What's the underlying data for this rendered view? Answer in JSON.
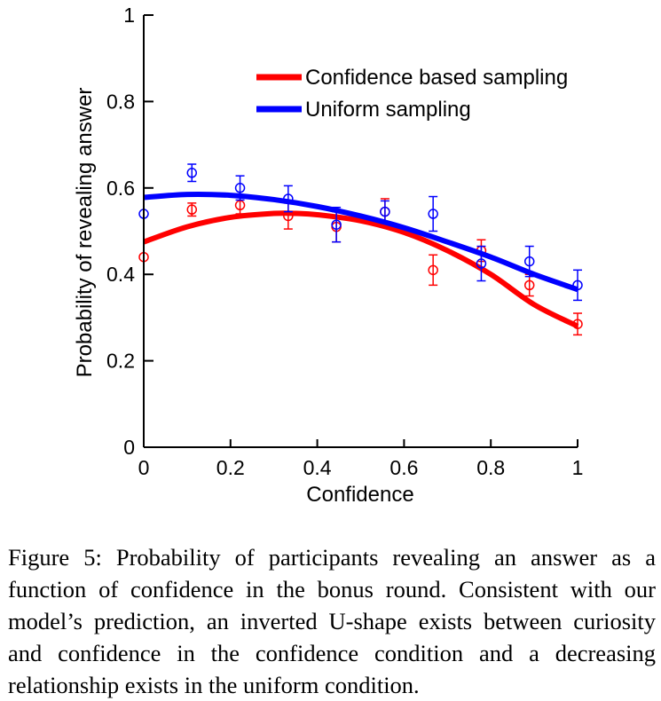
{
  "chart_data": {
    "type": "line",
    "xlabel": "Confidence",
    "ylabel": "Probability of revealing answer",
    "xlim": [
      0,
      1
    ],
    "ylim": [
      0,
      1
    ],
    "xticks": [
      0,
      0.2,
      0.4,
      0.6,
      0.8,
      1
    ],
    "xtick_labels": [
      "0",
      "0.2",
      "0.4",
      "0.6",
      "0.8",
      "1"
    ],
    "yticks": [
      0,
      0.2,
      0.4,
      0.6,
      0.8,
      1
    ],
    "ytick_labels": [
      "0",
      "0.2",
      "0.4",
      "0.6",
      "0.8",
      "1"
    ],
    "grid": false,
    "legend_position": "top-right",
    "series": [
      {
        "name": "Confidence based sampling",
        "color": "#ff0000",
        "fit_x": [
          0,
          0.1,
          0.2,
          0.3,
          0.35,
          0.4,
          0.5,
          0.6,
          0.7,
          0.8,
          0.9,
          1
        ],
        "fit_y": [
          0.475,
          0.51,
          0.532,
          0.541,
          0.541,
          0.538,
          0.524,
          0.497,
          0.455,
          0.4,
          0.33,
          0.28
        ],
        "points": [
          {
            "x": 0,
            "y": 0.44,
            "err": 0.0
          },
          {
            "x": 0.111,
            "y": 0.55,
            "err": 0.015
          },
          {
            "x": 0.222,
            "y": 0.56,
            "err": 0.02
          },
          {
            "x": 0.333,
            "y": 0.535,
            "err": 0.03
          },
          {
            "x": 0.444,
            "y": 0.51,
            "err": 0.035
          },
          {
            "x": 0.556,
            "y": 0.545,
            "err": 0.03
          },
          {
            "x": 0.667,
            "y": 0.41,
            "err": 0.035
          },
          {
            "x": 0.778,
            "y": 0.455,
            "err": 0.025
          },
          {
            "x": 0.889,
            "y": 0.375,
            "err": 0.025
          },
          {
            "x": 1,
            "y": 0.285,
            "err": 0.025
          }
        ]
      },
      {
        "name": "Uniform sampling",
        "color": "#0000ff",
        "fit_x": [
          0,
          0.1,
          0.2,
          0.3,
          0.4,
          0.5,
          0.6,
          0.7,
          0.8,
          0.9,
          1
        ],
        "fit_y": [
          0.578,
          0.585,
          0.583,
          0.573,
          0.557,
          0.535,
          0.508,
          0.475,
          0.44,
          0.4,
          0.365
        ],
        "points": [
          {
            "x": 0,
            "y": 0.54,
            "err": 0.0
          },
          {
            "x": 0.111,
            "y": 0.635,
            "err": 0.02
          },
          {
            "x": 0.222,
            "y": 0.6,
            "err": 0.028
          },
          {
            "x": 0.333,
            "y": 0.575,
            "err": 0.03
          },
          {
            "x": 0.444,
            "y": 0.515,
            "err": 0.04
          },
          {
            "x": 0.556,
            "y": 0.545,
            "err": 0.025
          },
          {
            "x": 0.667,
            "y": 0.54,
            "err": 0.04
          },
          {
            "x": 0.778,
            "y": 0.425,
            "err": 0.04
          },
          {
            "x": 0.889,
            "y": 0.43,
            "err": 0.035
          },
          {
            "x": 1,
            "y": 0.375,
            "err": 0.035
          }
        ]
      }
    ]
  },
  "caption": "Figure 5: Probability of participants revealing an answer as a function of confidence in the bonus round. Consistent with our model’s prediction, an inverted U-shape exists between curiosity and confidence in the confidence condition and a decreasing relationship exists in the uniform condition."
}
